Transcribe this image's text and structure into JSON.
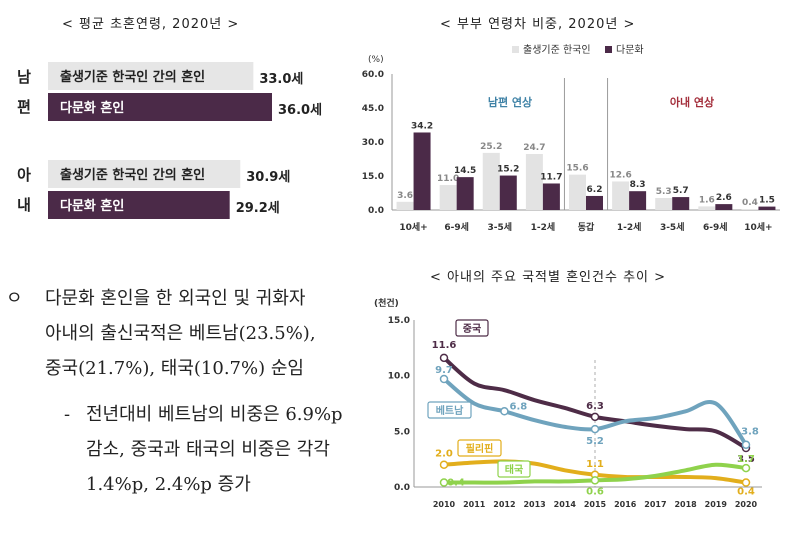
{
  "chart_data": [
    {
      "type": "bar",
      "orientation": "horizontal",
      "title": "< 평균 초혼연령, 2020년 >",
      "groups": [
        {
          "label_chars": [
            "남",
            "편"
          ],
          "bars": [
            {
              "label": "출생기준 한국인 간의 혼인",
              "value": 33.0,
              "value_label": "33.0세"
            },
            {
              "label": "다문화 혼인",
              "value": 36.0,
              "value_label": "36.0세"
            }
          ]
        },
        {
          "label_chars": [
            "아",
            "내"
          ],
          "bars": [
            {
              "label": "출생기준 한국인 간의 혼인",
              "value": 30.9,
              "value_label": "30.9세"
            },
            {
              "label": "다문화 혼인",
              "value": 29.2,
              "value_label": "29.2세"
            }
          ]
        }
      ],
      "colors": {
        "korean": "#e6e6e6",
        "multi": "#4b2a48"
      }
    },
    {
      "type": "bar",
      "title": "< 부부 연령차 비중, 2020년 >",
      "ylabel": "(%)",
      "ylim": [
        0,
        60
      ],
      "yticks": [
        "60.0",
        "45.0",
        "30.0",
        "15.0",
        "0.0"
      ],
      "legend": [
        "출생기준 한국인",
        "다문화"
      ],
      "legend_position": "top-right",
      "sections": [
        "남편 연상",
        "아내 연상"
      ],
      "categories": [
        "10세+",
        "6-9세",
        "3-5세",
        "1-2세",
        "동갑",
        "1-2세",
        "3-5세",
        "6-9세",
        "10세+"
      ],
      "series": [
        {
          "name": "출생기준 한국인",
          "values": [
            3.6,
            11.0,
            25.2,
            24.7,
            15.6,
            12.6,
            5.3,
            1.6,
            0.4
          ],
          "labels": [
            "3.6",
            "11.0",
            "25.2",
            "24.7",
            "15.6",
            "12.6",
            "5.3",
            "1.6",
            "0.4"
          ],
          "color": "#e3e3e3"
        },
        {
          "name": "다문화",
          "values": [
            34.2,
            14.5,
            15.2,
            11.7,
            6.2,
            8.3,
            5.7,
            2.6,
            1.5
          ],
          "labels": [
            "34.2",
            "14.5",
            "15.2",
            "11.7",
            "6.2",
            "8.3",
            "5.7",
            "2.6",
            "1.5"
          ],
          "color": "#4b2a48"
        }
      ]
    },
    {
      "type": "line",
      "title": "< 아내의 주요 국적별 혼인건수 추이 >",
      "ylabel": "(천건)",
      "ylim": [
        0,
        15
      ],
      "yticks": [
        "15.0",
        "10.0",
        "5.0",
        "0.0"
      ],
      "x": [
        "2010",
        "2011",
        "2012",
        "2013",
        "2014",
        "2015",
        "2016",
        "2017",
        "2018",
        "2019",
        "2020"
      ],
      "series": [
        {
          "name": "중국",
          "color": "#4e2c47",
          "values": [
            11.6,
            9.3,
            8.7,
            7.8,
            7.1,
            6.3,
            5.9,
            5.5,
            5.2,
            5.0,
            3.5
          ],
          "labels": [
            {
              "i": 0,
              "text": "11.6"
            },
            {
              "i": 5,
              "text": "6.3"
            },
            {
              "i": 10,
              "text": "3.5"
            }
          ]
        },
        {
          "name": "베트남",
          "color": "#6fa3bd",
          "values": [
            9.7,
            7.5,
            6.8,
            6.0,
            5.4,
            5.2,
            5.9,
            6.2,
            6.8,
            7.5,
            3.8
          ],
          "labels": [
            {
              "i": 0,
              "text": "9.7"
            },
            {
              "i": 2,
              "text": "6.8"
            },
            {
              "i": 5,
              "text": "5.2"
            },
            {
              "i": 10,
              "text": "3.8"
            }
          ]
        },
        {
          "name": "필리핀",
          "color": "#e2ae1c",
          "values": [
            2.0,
            2.2,
            2.3,
            2.1,
            1.5,
            1.1,
            0.9,
            0.9,
            0.9,
            0.8,
            0.4
          ],
          "labels": [
            {
              "i": 0,
              "text": "2.0"
            },
            {
              "i": 5,
              "text": "1.1"
            },
            {
              "i": 10,
              "text": "0.4"
            }
          ]
        },
        {
          "name": "태국",
          "color": "#8fd24c",
          "values": [
            0.4,
            0.4,
            0.4,
            0.5,
            0.5,
            0.6,
            0.7,
            1.0,
            1.5,
            2.0,
            1.7
          ],
          "labels": [
            {
              "i": 0,
              "text": "0.4"
            },
            {
              "i": 5,
              "text": "0.6"
            },
            {
              "i": 10,
              "text": "1.7"
            }
          ]
        }
      ]
    }
  ],
  "text": {
    "bullet_mark": "ㅇ",
    "bullet_lines": [
      "다문화 혼인을 한 외국인 및 귀화자",
      "아내의 출신국적은 베트남(23.5%),",
      "중국(21.7%), 태국(10.7%) 순임"
    ],
    "dash_mark": "-",
    "dash_lines": [
      "전년대비 베트남의 비중은 6.9%p",
      "감소, 중국과 태국의 비중은 각각",
      "1.4%p, 2.4%p 증가"
    ]
  }
}
